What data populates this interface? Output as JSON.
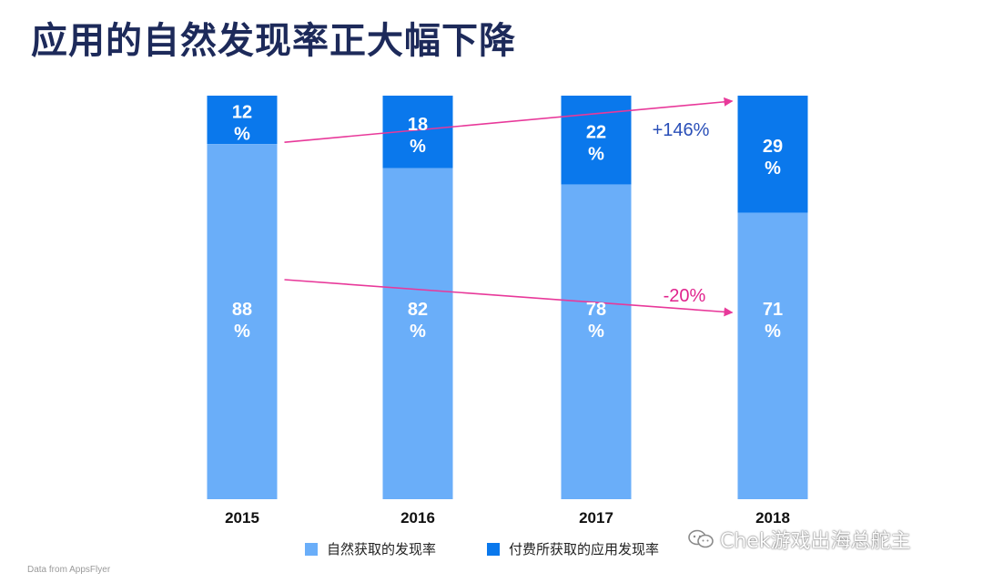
{
  "title": "应用的自然发现率正大幅下降",
  "colors": {
    "organic": "#6aaef9",
    "paid": "#0a78ec",
    "increase_text": "#2a4fb8",
    "decrease_text": "#e0238d",
    "trend_arrow": "#e8399a"
  },
  "chart_data": {
    "type": "bar",
    "stacked": true,
    "normalized_percent": true,
    "categories": [
      "2015",
      "2016",
      "2017",
      "2018"
    ],
    "series": [
      {
        "name": "自然获取的发现率",
        "values": [
          88,
          82,
          78,
          71
        ],
        "color": "#6aaef9",
        "labels": [
          "88\n%",
          "82\n%",
          "78\n%",
          "71\n%"
        ]
      },
      {
        "name": "付费所获取的应用发现率",
        "values": [
          12,
          18,
          22,
          29
        ],
        "color": "#0a78ec",
        "labels": [
          "12\n%",
          "18\n%",
          "22\n%",
          "29\n%"
        ]
      }
    ],
    "annotations": [
      {
        "text": "+146%",
        "series": "付费所获取的应用发现率",
        "from": "2015",
        "to": "2018"
      },
      {
        "text": "-20%",
        "series": "自然获取的发现率",
        "from": "2015",
        "to": "2018"
      }
    ],
    "legend_position": "bottom",
    "grid": false
  },
  "source_note": "Data from AppsFlyer",
  "watermark": "Chek游戏出海总舵主"
}
